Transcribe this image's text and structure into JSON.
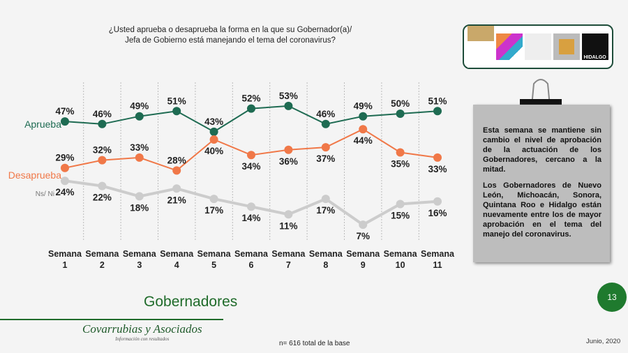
{
  "title_lines": [
    "¿Usted aprueba o desaprueba la forma en la que su Gobernador(a)/",
    "Jefa de Gobierno está manejando el tema del coronavirus?"
  ],
  "logos": [
    "Nuevo León",
    "Michoacán",
    "Gobierno del Estado de Sonora",
    "Quintana Roo",
    "Hidalgo"
  ],
  "note": [
    "Esta semana se mantiene sin cambio el nivel de aprobación de la actuación de los Gobernadores, cercano a la mitad.",
    "Los Gobernadores de  Nuevo León, Michoacán, Sonora, Quintana Roo e Hidalgo están nuevamente entre los de mayor aprobación en el tema del manejo del coronavirus."
  ],
  "page_number": "13",
  "section": "Gobernadores",
  "brand": {
    "name": "Covarrubias y Asociados",
    "tagline": "Información con resultados"
  },
  "base": "n= 616 total de la base",
  "date": "Junio, 2020",
  "chart_data": {
    "type": "line",
    "categories": [
      [
        "Semana",
        "1"
      ],
      [
        "Semana",
        "2"
      ],
      [
        "Semana",
        "3"
      ],
      [
        "Semana",
        "4"
      ],
      [
        "Semana",
        "5"
      ],
      [
        "Semana",
        "6"
      ],
      [
        "Semana",
        "7"
      ],
      [
        "Semana",
        "8"
      ],
      [
        "Semana",
        "9"
      ],
      [
        "Semana",
        "10"
      ],
      [
        "Semana",
        "11"
      ]
    ],
    "unit": "%",
    "grid": "vertical dashed",
    "series": [
      {
        "name": "Aprueba",
        "color": "#1e6b52",
        "values": [
          47,
          46,
          49,
          51,
          43,
          52,
          53,
          46,
          49,
          50,
          51
        ]
      },
      {
        "name": "Desaprueba",
        "color": "#f07848",
        "values": [
          29,
          32,
          33,
          28,
          40,
          34,
          36,
          37,
          44,
          35,
          33
        ]
      },
      {
        "name": "Ns/ Ni",
        "color": "#cccccc",
        "values": [
          24,
          22,
          18,
          21,
          17,
          14,
          11,
          17,
          7,
          15,
          16
        ]
      }
    ]
  }
}
